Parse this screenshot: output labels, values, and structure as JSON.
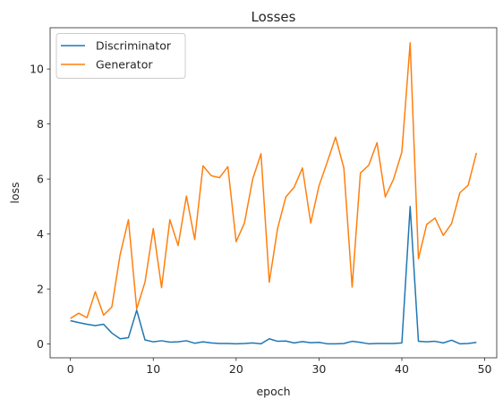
{
  "chart_data": {
    "type": "line",
    "title": "Losses",
    "xlabel": "epoch",
    "ylabel": "loss",
    "xlim": [
      -2.45,
      51.45
    ],
    "ylim": [
      -0.5,
      11.5
    ],
    "xticks": [
      0,
      10,
      20,
      30,
      40,
      50
    ],
    "yticks": [
      0,
      2,
      4,
      6,
      8,
      10
    ],
    "grid": false,
    "legend_position": "upper left",
    "x": [
      0,
      1,
      2,
      3,
      4,
      5,
      6,
      7,
      8,
      9,
      10,
      11,
      12,
      13,
      14,
      15,
      16,
      17,
      18,
      19,
      20,
      21,
      22,
      23,
      24,
      25,
      26,
      27,
      28,
      29,
      30,
      31,
      32,
      33,
      34,
      35,
      36,
      37,
      38,
      39,
      40,
      41,
      42,
      43,
      44,
      45,
      46,
      47,
      48,
      49
    ],
    "series": [
      {
        "name": "Discriminator",
        "color": "#1f77b4",
        "values": [
          0.85,
          0.78,
          0.72,
          0.67,
          0.72,
          0.4,
          0.19,
          0.23,
          1.23,
          0.15,
          0.08,
          0.12,
          0.07,
          0.08,
          0.12,
          0.03,
          0.08,
          0.04,
          0.02,
          0.02,
          0.01,
          0.02,
          0.04,
          0.01,
          0.19,
          0.1,
          0.11,
          0.04,
          0.09,
          0.05,
          0.06,
          0.01,
          0.01,
          0.02,
          0.1,
          0.06,
          0.01,
          0.02,
          0.02,
          0.02,
          0.04,
          5.0,
          0.1,
          0.08,
          0.1,
          0.04,
          0.14,
          0.01,
          0.02,
          0.06
        ]
      },
      {
        "name": "Generator",
        "color": "#ff7f0e",
        "values": [
          0.93,
          1.12,
          0.96,
          1.9,
          1.05,
          1.35,
          3.25,
          4.52,
          1.28,
          2.25,
          4.2,
          2.05,
          4.52,
          3.58,
          5.38,
          3.8,
          6.48,
          6.12,
          6.05,
          6.45,
          3.72,
          4.4,
          6.0,
          6.92,
          2.25,
          4.2,
          5.35,
          5.7,
          6.4,
          4.4,
          5.75,
          6.62,
          7.52,
          6.4,
          2.07,
          6.22,
          6.5,
          7.32,
          5.35,
          6.0,
          6.98,
          10.95,
          3.1,
          4.35,
          4.58,
          3.95,
          4.38,
          5.5,
          5.77,
          6.95
        ]
      }
    ]
  }
}
